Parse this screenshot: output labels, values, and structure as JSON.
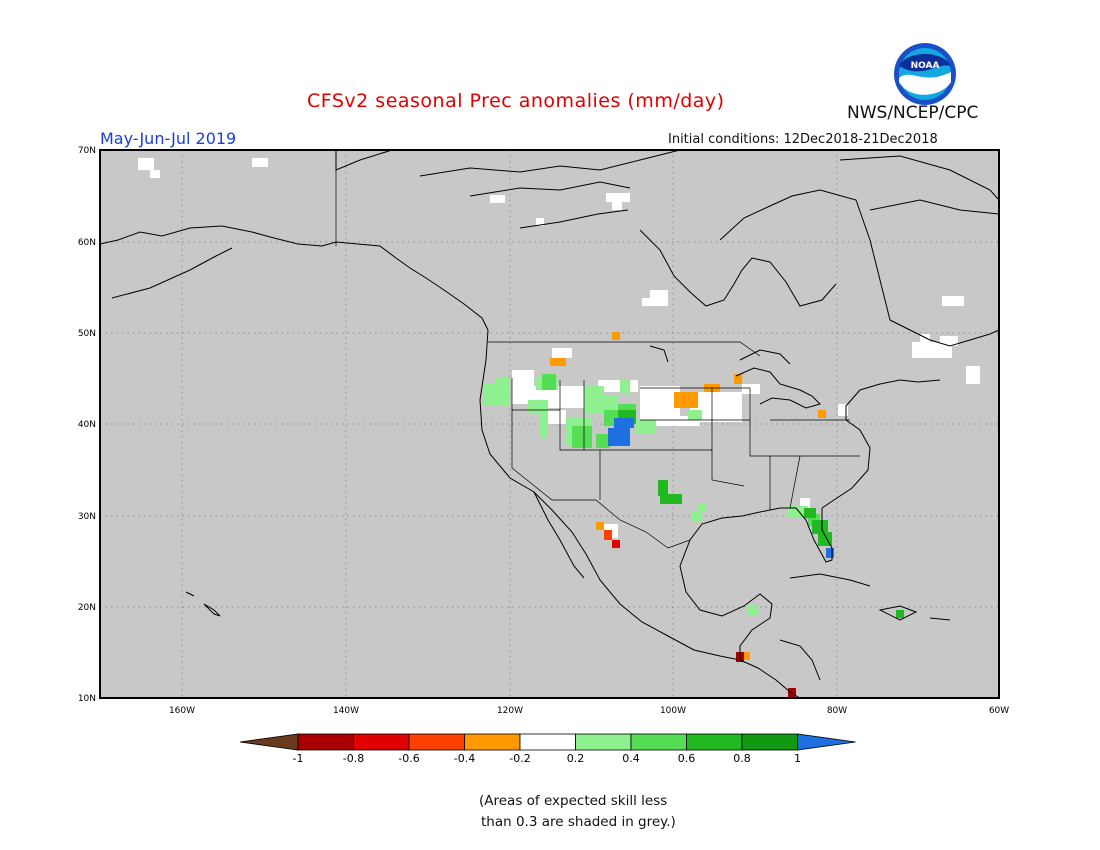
{
  "header": {
    "title": "CFSv2 seasonal Prec anomalies (mm/day)",
    "season": "May-Jun-Jul 2019",
    "initial_conditions": "Initial conditions: 12Dec2018-21Dec2018",
    "agency": "NWS/NCEP/CPC",
    "logo_text": "NOAA"
  },
  "map": {
    "region": "North America",
    "lat_labels": [
      "70N",
      "60N",
      "50N",
      "40N",
      "30N",
      "20N",
      "10N"
    ],
    "lon_labels": [
      "160W",
      "140W",
      "120W",
      "100W",
      "80W",
      "60W"
    ],
    "background_color": "#c8c8c8",
    "gridlines": "dotted"
  },
  "legend": {
    "tick_labels": [
      "-1",
      "-0.8",
      "-0.6",
      "-0.4",
      "-0.2",
      "0.2",
      "0.4",
      "0.6",
      "0.8",
      "1"
    ],
    "colors": [
      "#6b3a1e",
      "#a80000",
      "#e00000",
      "#ff4000",
      "#ff9900",
      "#ffffff",
      "#8ef08e",
      "#55dd55",
      "#22b822",
      "#119911",
      "#1e6fe0"
    ]
  },
  "footnote": {
    "line1": "(Areas of expected skill less",
    "line2": "than 0.3 are shaded in grey.)"
  }
}
